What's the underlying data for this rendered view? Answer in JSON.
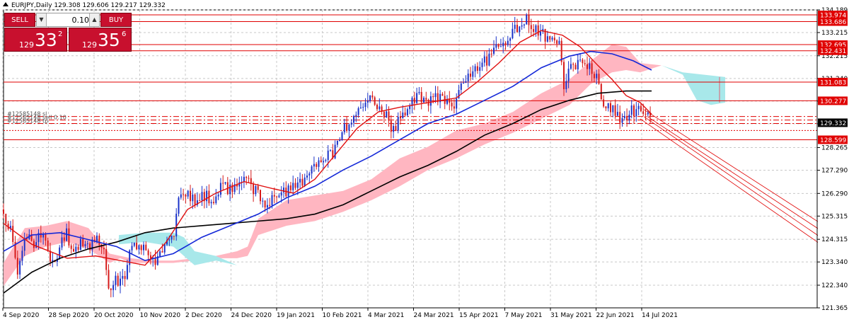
{
  "header": {
    "symbol_icon": "triangle-up-icon",
    "text": "EURJPY,Daily  129.308 129.606 129.217 129.332"
  },
  "trade_panel": {
    "sell_label": "SELL",
    "buy_label": "BUY",
    "lot": "0.10",
    "sell_small": "129",
    "sell_big": "33",
    "sell_sup": "2",
    "buy_small": "129",
    "buy_big": "35",
    "buy_sup": "6"
  },
  "colors": {
    "bull": "#1a32c8",
    "bear": "#d61a1a",
    "ma_fast": "#e01010",
    "ma_mid": "#1428d8",
    "ma_slow": "#000000",
    "cloud_bear": "#ffb6c1",
    "cloud_bull": "#a8e8ea",
    "level": "#e00000",
    "price_tag": "#e00000",
    "grid": "#c8c8c8"
  },
  "chart_data": {
    "type": "candlestick",
    "ylim": [
      121.365,
      134.189
    ],
    "y_ticks": [
      "134.189",
      "133.215",
      "132.215",
      "131.240",
      "130.265",
      "129.290",
      "128.265",
      "127.290",
      "126.290",
      "125.315",
      "124.315",
      "123.340",
      "122.340",
      "121.365"
    ],
    "x_labels": [
      "4 Sep 2020",
      "28 Sep 2020",
      "20 Oct 2020",
      "10 Nov 2020",
      "2 Dec 2020",
      "24 Dec 2020",
      "19 Jan 2021",
      "10 Feb 2021",
      "4 Mar 2021",
      "24 Mar 2021",
      "15 Apr 2021",
      "7 May 2021",
      "31 May 2021",
      "22 Jun 2021",
      "14 Jul 2021"
    ],
    "current_price": "129.332",
    "horizontal_levels": [
      {
        "price": 133.974,
        "label": "133.974"
      },
      {
        "price": 133.686,
        "label": "133.686"
      },
      {
        "price": 132.695,
        "label": "132.695"
      },
      {
        "price": 132.431,
        "label": "132.431"
      },
      {
        "price": 131.083,
        "label": "131.083"
      },
      {
        "price": 130.277,
        "label": "130.277"
      },
      {
        "price": 128.599,
        "label": "128.599"
      }
    ],
    "order_lines": [
      {
        "price": 129.6,
        "label": "#12585148 sl"
      },
      {
        "price": 129.45,
        "label": "#12585148 sell 0.10"
      },
      {
        "price": 129.3,
        "label": "#12585148 tp"
      }
    ],
    "order_levels": [
      129.6,
      129.45,
      129.3,
      129.0
    ],
    "candle_keys": [
      [
        0,
        125.6
      ],
      [
        10,
        124.6
      ],
      [
        20,
        123.0
      ],
      [
        30,
        124.5
      ],
      [
        42,
        124.0
      ],
      [
        55,
        124.8
      ],
      [
        66,
        123.6
      ],
      [
        77,
        123.6
      ],
      [
        88,
        124.6
      ],
      [
        98,
        123.9
      ],
      [
        110,
        124.2
      ],
      [
        120,
        124.0
      ],
      [
        130,
        124.3
      ],
      [
        140,
        124.0
      ],
      [
        150,
        122.0
      ],
      [
        160,
        122.6
      ],
      [
        170,
        122.6
      ],
      [
        180,
        124.0
      ],
      [
        190,
        124.2
      ],
      [
        200,
        124.0
      ],
      [
        210,
        123.2
      ],
      [
        220,
        123.8
      ],
      [
        230,
        124.2
      ],
      [
        240,
        124.5
      ],
      [
        250,
        126.3
      ],
      [
        262,
        126.2
      ],
      [
        274,
        126.0
      ],
      [
        286,
        126.2
      ],
      [
        298,
        126.0
      ],
      [
        310,
        126.6
      ],
      [
        322,
        126.4
      ],
      [
        334,
        126.9
      ],
      [
        346,
        126.7
      ],
      [
        358,
        126.3
      ],
      [
        370,
        125.4
      ],
      [
        382,
        126.2
      ],
      [
        394,
        126.4
      ],
      [
        406,
        126.4
      ],
      [
        418,
        126.6
      ],
      [
        430,
        126.8
      ],
      [
        442,
        127.6
      ],
      [
        454,
        128.0
      ],
      [
        466,
        128.1
      ],
      [
        478,
        128.9
      ],
      [
        490,
        129.5
      ],
      [
        502,
        129.9
      ],
      [
        514,
        130.2
      ],
      [
        526,
        130.3
      ],
      [
        538,
        129.7
      ],
      [
        550,
        129.1
      ],
      [
        562,
        129.5
      ],
      [
        574,
        130.0
      ],
      [
        586,
        130.4
      ],
      [
        598,
        130.3
      ],
      [
        610,
        130.4
      ],
      [
        622,
        130.3
      ],
      [
        634,
        130.0
      ],
      [
        646,
        131.0
      ],
      [
        658,
        131.5
      ],
      [
        670,
        131.6
      ],
      [
        682,
        132.0
      ],
      [
        694,
        132.6
      ],
      [
        706,
        132.6
      ],
      [
        718,
        133.1
      ],
      [
        730,
        133.7
      ],
      [
        742,
        133.7
      ],
      [
        754,
        133.4
      ],
      [
        766,
        133.1
      ],
      [
        778,
        132.9
      ],
      [
        786,
        132.6
      ],
      [
        792,
        131.0
      ],
      [
        798,
        131.5
      ],
      [
        806,
        131.9
      ],
      [
        814,
        131.9
      ],
      [
        822,
        131.9
      ],
      [
        830,
        131.7
      ],
      [
        838,
        131.3
      ],
      [
        846,
        130.2
      ],
      [
        854,
        129.9
      ],
      [
        862,
        129.9
      ],
      [
        870,
        129.5
      ],
      [
        878,
        129.6
      ],
      [
        886,
        129.9
      ],
      [
        894,
        129.9
      ],
      [
        902,
        129.9
      ],
      [
        908,
        129.8
      ],
      [
        916,
        129.3
      ]
    ],
    "ma_fast": [
      [
        0,
        125.0
      ],
      [
        40,
        124.1
      ],
      [
        90,
        123.5
      ],
      [
        130,
        123.6
      ],
      [
        165,
        123.4
      ],
      [
        200,
        123.2
      ],
      [
        230,
        124.2
      ],
      [
        260,
        125.6
      ],
      [
        300,
        126.3
      ],
      [
        340,
        126.8
      ],
      [
        380,
        126.5
      ],
      [
        410,
        126.3
      ],
      [
        440,
        126.9
      ],
      [
        470,
        128.0
      ],
      [
        500,
        129.1
      ],
      [
        530,
        129.8
      ],
      [
        560,
        130.0
      ],
      [
        600,
        130.2
      ],
      [
        640,
        130.4
      ],
      [
        670,
        131.1
      ],
      [
        700,
        131.9
      ],
      [
        730,
        132.8
      ],
      [
        760,
        133.3
      ],
      [
        790,
        133.1
      ],
      [
        815,
        132.6
      ],
      [
        840,
        131.8
      ],
      [
        860,
        131.2
      ],
      [
        880,
        130.5
      ],
      [
        900,
        130.2
      ],
      [
        916,
        129.7
      ]
    ],
    "ma_mid": [
      [
        0,
        123.8
      ],
      [
        40,
        124.5
      ],
      [
        80,
        124.6
      ],
      [
        120,
        124.3
      ],
      [
        160,
        124.0
      ],
      [
        200,
        123.4
      ],
      [
        240,
        123.7
      ],
      [
        280,
        124.4
      ],
      [
        320,
        124.9
      ],
      [
        360,
        125.4
      ],
      [
        400,
        126.1
      ],
      [
        440,
        126.6
      ],
      [
        480,
        127.3
      ],
      [
        520,
        127.9
      ],
      [
        560,
        128.6
      ],
      [
        600,
        129.3
      ],
      [
        640,
        129.7
      ],
      [
        680,
        130.3
      ],
      [
        720,
        130.9
      ],
      [
        760,
        131.7
      ],
      [
        800,
        132.2
      ],
      [
        830,
        132.4
      ],
      [
        860,
        132.3
      ],
      [
        890,
        132.0
      ],
      [
        916,
        131.6
      ]
    ],
    "ma_slow": [
      [
        0,
        122.0
      ],
      [
        40,
        122.9
      ],
      [
        80,
        123.5
      ],
      [
        120,
        123.9
      ],
      [
        160,
        124.2
      ],
      [
        200,
        124.6
      ],
      [
        240,
        124.8
      ],
      [
        280,
        124.9
      ],
      [
        320,
        125.0
      ],
      [
        360,
        125.1
      ],
      [
        400,
        125.2
      ],
      [
        440,
        125.4
      ],
      [
        480,
        125.8
      ],
      [
        520,
        126.4
      ],
      [
        560,
        127.0
      ],
      [
        600,
        127.5
      ],
      [
        640,
        128.1
      ],
      [
        680,
        128.8
      ],
      [
        720,
        129.3
      ],
      [
        760,
        129.9
      ],
      [
        800,
        130.3
      ],
      [
        840,
        130.6
      ],
      [
        880,
        130.7
      ],
      [
        916,
        130.7
      ]
    ],
    "cloud_bear_top": [
      [
        0,
        123.3
      ],
      [
        30,
        124.8
      ],
      [
        60,
        124.9
      ],
      [
        90,
        125.1
      ],
      [
        120,
        124.8
      ],
      [
        150,
        123.7
      ],
      [
        180,
        123.5
      ],
      [
        210,
        123.4
      ],
      [
        240,
        123.4
      ],
      [
        270,
        123.5
      ],
      [
        300,
        123.6
      ],
      [
        330,
        123.8
      ],
      [
        345,
        124.0
      ],
      [
        360,
        125.2
      ],
      [
        400,
        126.0
      ],
      [
        440,
        126.2
      ],
      [
        480,
        126.4
      ],
      [
        520,
        126.9
      ],
      [
        560,
        127.8
      ],
      [
        600,
        128.3
      ],
      [
        640,
        129.0
      ],
      [
        680,
        129.3
      ],
      [
        720,
        129.8
      ],
      [
        760,
        130.6
      ],
      [
        800,
        131.2
      ],
      [
        830,
        132.0
      ],
      [
        860,
        132.7
      ],
      [
        880,
        132.6
      ],
      [
        900,
        131.9
      ],
      [
        930,
        131.8
      ]
    ],
    "cloud_bear_bot": [
      [
        0,
        122.3
      ],
      [
        30,
        123.6
      ],
      [
        60,
        124.0
      ],
      [
        90,
        124.2
      ],
      [
        120,
        123.9
      ],
      [
        150,
        123.3
      ],
      [
        165,
        123.5
      ],
      [
        180,
        123.3
      ],
      [
        210,
        123.3
      ],
      [
        240,
        123.3
      ],
      [
        270,
        123.4
      ],
      [
        300,
        123.5
      ],
      [
        330,
        123.5
      ],
      [
        345,
        123.6
      ],
      [
        360,
        124.5
      ],
      [
        400,
        124.9
      ],
      [
        440,
        125.1
      ],
      [
        480,
        125.5
      ],
      [
        520,
        126.0
      ],
      [
        560,
        126.6
      ],
      [
        600,
        127.3
      ],
      [
        640,
        127.8
      ],
      [
        680,
        128.4
      ],
      [
        720,
        128.9
      ],
      [
        760,
        129.5
      ],
      [
        800,
        130.1
      ],
      [
        830,
        131.0
      ],
      [
        860,
        131.5
      ],
      [
        880,
        131.6
      ],
      [
        900,
        131.5
      ],
      [
        930,
        131.8
      ]
    ],
    "cloud_bull_top": [
      [
        163,
        124.5
      ],
      [
        200,
        124.6
      ],
      [
        240,
        124.6
      ],
      [
        255,
        124.4
      ],
      [
        270,
        123.8
      ],
      [
        300,
        123.6
      ],
      [
        330,
        123.2
      ],
      [
        930,
        131.8
      ],
      [
        960,
        131.5
      ],
      [
        1020,
        131.3
      ]
    ],
    "cloud_bull_bot": [
      [
        163,
        124.1
      ],
      [
        200,
        124.2
      ],
      [
        240,
        124.0
      ],
      [
        255,
        123.6
      ],
      [
        270,
        123.2
      ],
      [
        300,
        123.4
      ],
      [
        330,
        123.2
      ],
      [
        930,
        131.8
      ],
      [
        960,
        131.4
      ],
      [
        980,
        130.3
      ],
      [
        1000,
        130.1
      ],
      [
        1020,
        130.2
      ]
    ],
    "channel_lines": [
      [
        [
          905,
          129.9
        ],
        [
          1155,
          125.0
        ]
      ],
      [
        [
          910,
          129.6
        ],
        [
          1155,
          124.7
        ]
      ],
      [
        [
          905,
          129.6
        ],
        [
          1155,
          124.4
        ]
      ],
      [
        [
          900,
          129.5
        ],
        [
          1155,
          124.1
        ]
      ]
    ]
  }
}
